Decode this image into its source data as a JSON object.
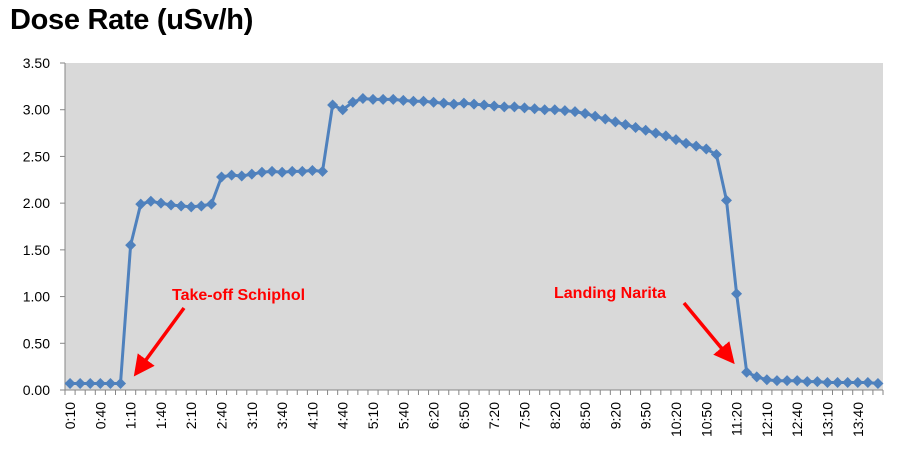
{
  "title": "Dose Rate (uSv/h)",
  "colors": {
    "series": "#4f81bd",
    "plot_bg": "#d9d9d9",
    "axis": "#868686",
    "annotation": "#ff0000"
  },
  "chart_data": {
    "type": "line",
    "title": "Dose Rate (uSv/h)",
    "xlabel": "",
    "ylabel": "",
    "ylim": [
      0,
      3.5
    ],
    "yticks": [
      "0.00",
      "0.50",
      "1.00",
      "1.50",
      "2.00",
      "2.50",
      "3.00",
      "3.50"
    ],
    "grid": false,
    "legend": null,
    "marker": "diamond",
    "num_categories": 81,
    "x_tick_labels": [
      "0:10",
      "0:40",
      "1:10",
      "1:40",
      "2:10",
      "2:40",
      "3:10",
      "3:40",
      "4:10",
      "4:40",
      "5:10",
      "5:40",
      "6:20",
      "6:50",
      "7:20",
      "7:50",
      "8:20",
      "8:50",
      "9:20",
      "9:50",
      "10:20",
      "10:50",
      "11:20",
      "12:10",
      "12:40",
      "13:10",
      "13:40"
    ],
    "x_tick_every": 3,
    "series": [
      {
        "name": "Dose Rate (uSv/h)",
        "values": [
          0.07,
          0.07,
          0.07,
          0.07,
          0.07,
          0.07,
          1.55,
          1.99,
          2.02,
          2.0,
          1.98,
          1.97,
          1.96,
          1.97,
          1.99,
          2.28,
          2.3,
          2.29,
          2.31,
          2.33,
          2.34,
          2.33,
          2.34,
          2.34,
          2.35,
          2.34,
          3.05,
          3.0,
          3.08,
          3.12,
          3.11,
          3.11,
          3.11,
          3.1,
          3.09,
          3.09,
          3.08,
          3.07,
          3.06,
          3.07,
          3.06,
          3.05,
          3.04,
          3.03,
          3.03,
          3.02,
          3.01,
          3.0,
          3.0,
          2.99,
          2.98,
          2.96,
          2.93,
          2.9,
          2.87,
          2.84,
          2.81,
          2.78,
          2.75,
          2.72,
          2.68,
          2.64,
          2.61,
          2.58,
          2.52,
          2.03,
          1.03,
          0.19,
          0.14,
          0.11,
          0.1,
          0.1,
          0.1,
          0.09,
          0.09,
          0.08,
          0.08,
          0.08,
          0.08,
          0.08,
          0.07
        ]
      }
    ],
    "annotations": [
      {
        "text": "Take-off Schiphol",
        "category_index": 6
      },
      {
        "text": "Landing Narita",
        "category_index": 67
      }
    ]
  }
}
